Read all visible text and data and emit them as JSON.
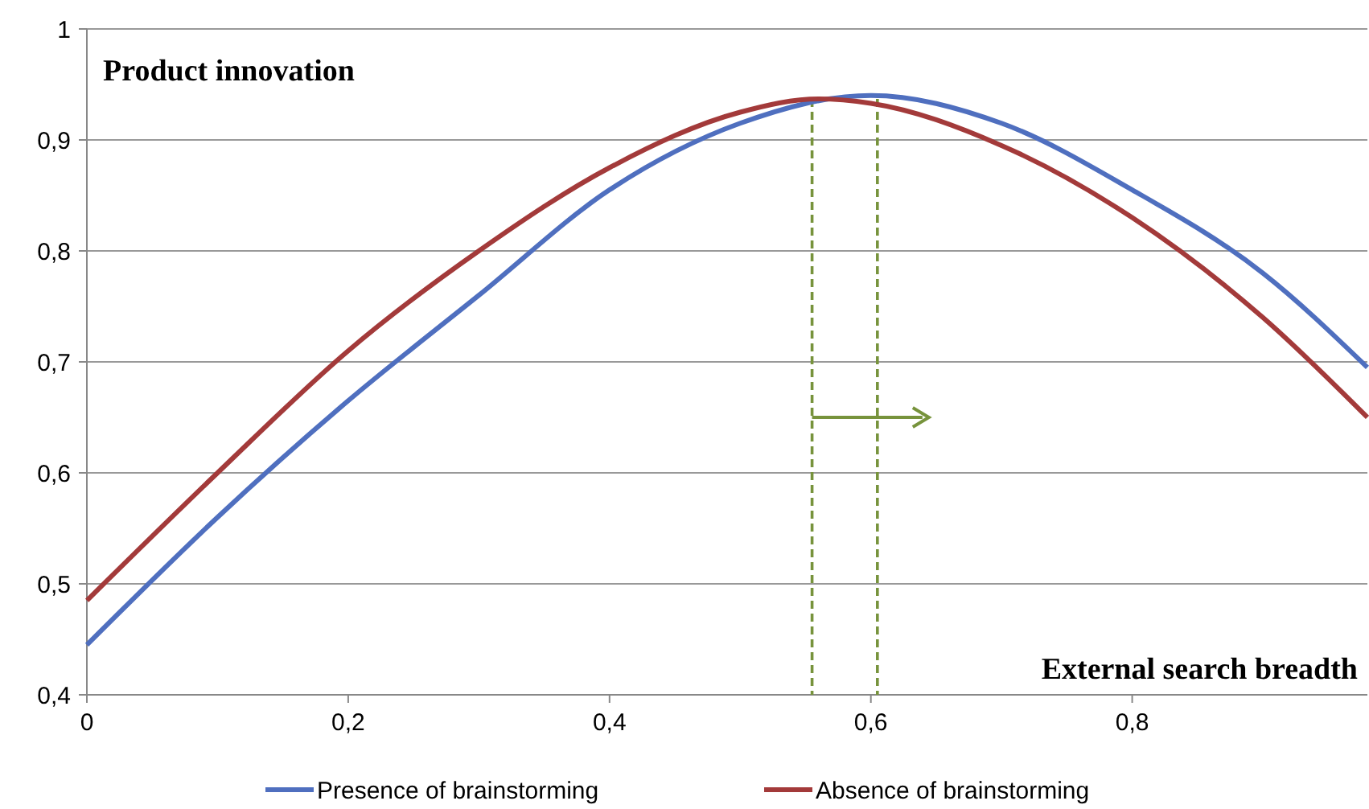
{
  "chart_data": {
    "type": "line",
    "xlabel": "External search breadth",
    "ylabel": "Product innovation",
    "xlim": [
      0,
      0.98
    ],
    "ylim": [
      0.4,
      1
    ],
    "xticks": [
      0,
      {
        "value": 0.2,
        "label": "0,2"
      },
      {
        "value": 0.4,
        "label": "0,4"
      },
      {
        "value": 0.6,
        "label": "0,6"
      },
      {
        "value": 0.8,
        "label": "0,8"
      }
    ],
    "yticks": [
      {
        "value": 0.4,
        "label": "0,4"
      },
      {
        "value": 0.5,
        "label": "0,5"
      },
      {
        "value": 0.6,
        "label": "0,6"
      },
      {
        "value": 0.7,
        "label": "0,7"
      },
      {
        "value": 0.8,
        "label": "0,8"
      },
      {
        "value": 0.9,
        "label": "0,9"
      },
      1
    ],
    "grid": "y",
    "legend": "bottom",
    "line_style": "solid",
    "ref_lines": [
      {
        "axis": "x",
        "value": 0.555,
        "label": null,
        "color": "#77933c",
        "line_style": "dashed"
      },
      {
        "axis": "x",
        "value": 0.605,
        "label": null,
        "color": "#77933c",
        "line_style": "dashed"
      }
    ],
    "series": [
      {
        "name": "Presence of brainstorming",
        "color": "#4f6fbf",
        "x": [
          0,
          0.1,
          0.2,
          0.3,
          0.4,
          0.5,
          0.6,
          0.7,
          0.8,
          0.9,
          0.98
        ],
        "values": [
          0.445,
          0.56,
          0.665,
          0.76,
          0.855,
          0.915,
          0.94,
          0.915,
          0.855,
          0.78,
          0.695
        ]
      },
      {
        "name": "Absence of brainstorming",
        "color": "#a33a3a",
        "x": [
          0,
          0.1,
          0.2,
          0.3,
          0.4,
          0.5,
          0.56,
          0.6,
          0.7,
          0.8,
          0.9,
          0.98
        ],
        "values": [
          0.485,
          0.6,
          0.71,
          0.8,
          0.875,
          0.925,
          0.937,
          0.933,
          0.895,
          0.83,
          0.74,
          0.65
        ]
      }
    ]
  }
}
